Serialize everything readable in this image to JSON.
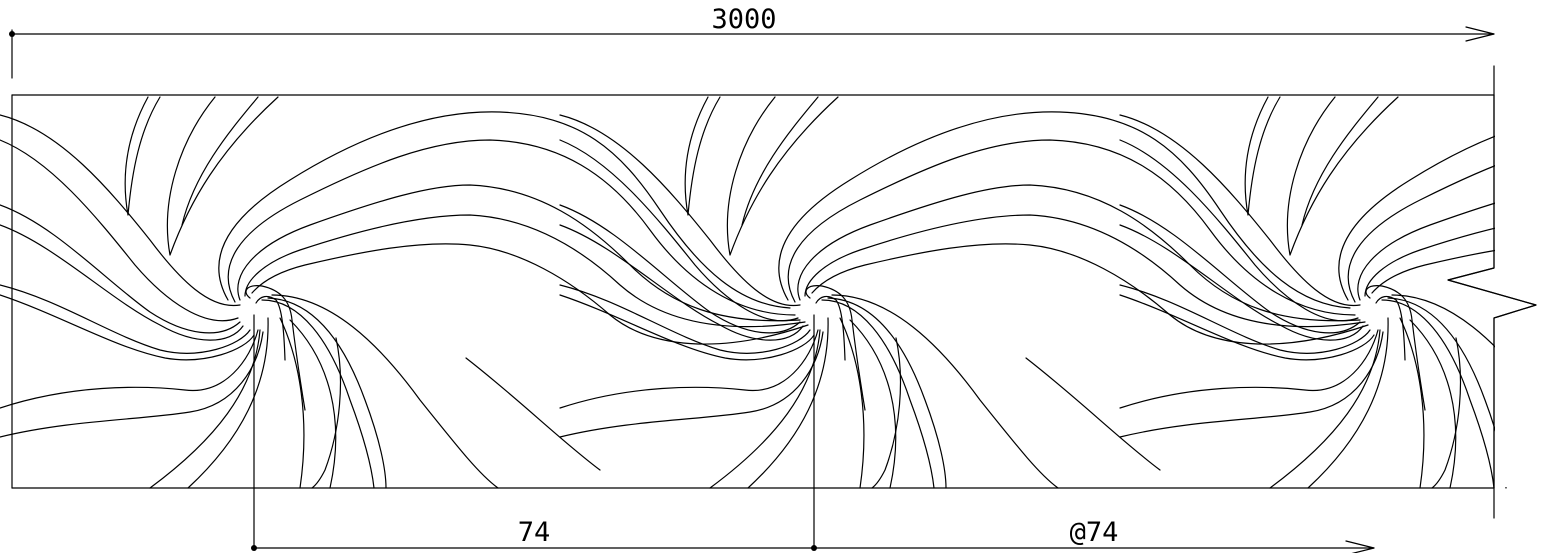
{
  "dimensions": {
    "overall_length": "3000",
    "segment_first": "74",
    "segment_repeat": "@74"
  },
  "pattern": {
    "swirl_count": 3
  },
  "colors": {
    "background": "#ffffff",
    "line": "#000000"
  }
}
